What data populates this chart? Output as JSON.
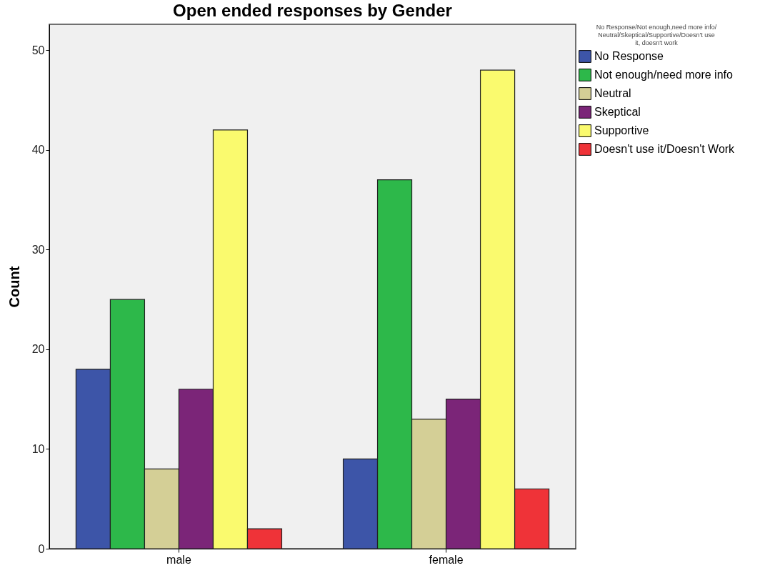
{
  "chart_data": {
    "type": "bar",
    "title": "Open ended responses by Gender",
    "ylabel": "Count",
    "legend_title": "No Response/Not enough,need more info/Neutral/Skeptical/Supportive/Doesn't use it, doesn't work",
    "categories": [
      "male",
      "female"
    ],
    "series": [
      {
        "name": "No Response",
        "color": "#3d55a8",
        "values": [
          18,
          9
        ]
      },
      {
        "name": "Not enough/need more info",
        "color": "#2db84a",
        "values": [
          25,
          37
        ]
      },
      {
        "name": "Neutral",
        "color": "#d4cf96",
        "values": [
          8,
          13
        ]
      },
      {
        "name": "Skeptical",
        "color": "#7b2578",
        "values": [
          16,
          15
        ]
      },
      {
        "name": "Supportive",
        "color": "#fafa6e",
        "values": [
          42,
          48
        ]
      },
      {
        "name": "Doesn't use it/Doesn't Work",
        "color": "#ef3338",
        "values": [
          2,
          6
        ]
      }
    ],
    "ylim": [
      0,
      52.6
    ],
    "yticks": [
      0,
      10,
      20,
      30,
      40,
      50
    ],
    "grid": false,
    "legend": "top right"
  }
}
